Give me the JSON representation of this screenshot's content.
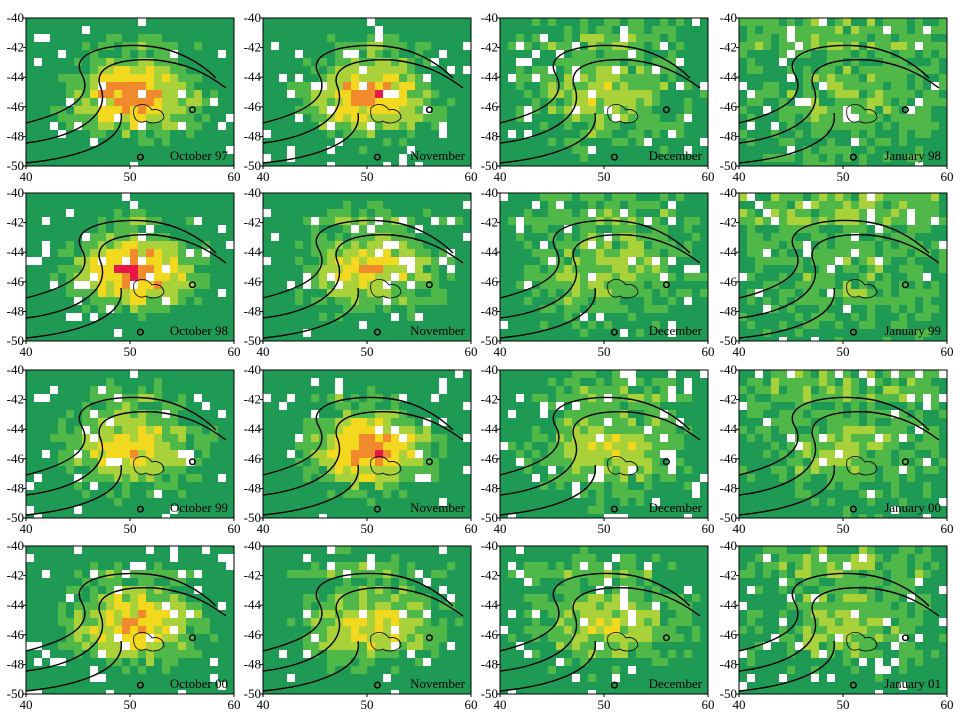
{
  "chart_data": {
    "type": "heatmap",
    "layout": {
      "rows": 4,
      "cols": 4
    },
    "xlim": [
      40,
      60
    ],
    "ylim": [
      -50,
      -40
    ],
    "x_ticks": [
      40,
      50,
      60
    ],
    "y_ticks": [
      -40,
      -42,
      -44,
      -46,
      -48,
      -50
    ],
    "grid": false,
    "colors": {
      "high": "#e8174a",
      "mid_high": "#f08a2c",
      "mid": "#f2d81e",
      "low_mid": "#a9d13a",
      "low": "#4fb848",
      "lowest": "#1e9a55",
      "no_data": "#ffffff",
      "contour": "#000000"
    },
    "markers": [
      {
        "lon": 56,
        "lat": -46.2
      },
      {
        "lon": 51,
        "lat": -49.4
      }
    ],
    "panels": [
      {
        "label": "October 97",
        "intensity": 0.8
      },
      {
        "label": "November",
        "intensity": 0.75
      },
      {
        "label": "December",
        "intensity": 0.35
      },
      {
        "label": "January 98",
        "intensity": 0.15
      },
      {
        "label": "October 98",
        "intensity": 0.85
      },
      {
        "label": "November",
        "intensity": 0.55
      },
      {
        "label": "December",
        "intensity": 0.3
      },
      {
        "label": "January 99",
        "intensity": 0.1
      },
      {
        "label": "October 99",
        "intensity": 0.6
      },
      {
        "label": "November",
        "intensity": 0.8
      },
      {
        "label": "December",
        "intensity": 0.4
      },
      {
        "label": "January 00",
        "intensity": 0.2
      },
      {
        "label": "October 00",
        "intensity": 0.65
      },
      {
        "label": "November",
        "intensity": 0.5
      },
      {
        "label": "December",
        "intensity": 0.4
      },
      {
        "label": "January 01",
        "intensity": 0.25
      }
    ]
  }
}
